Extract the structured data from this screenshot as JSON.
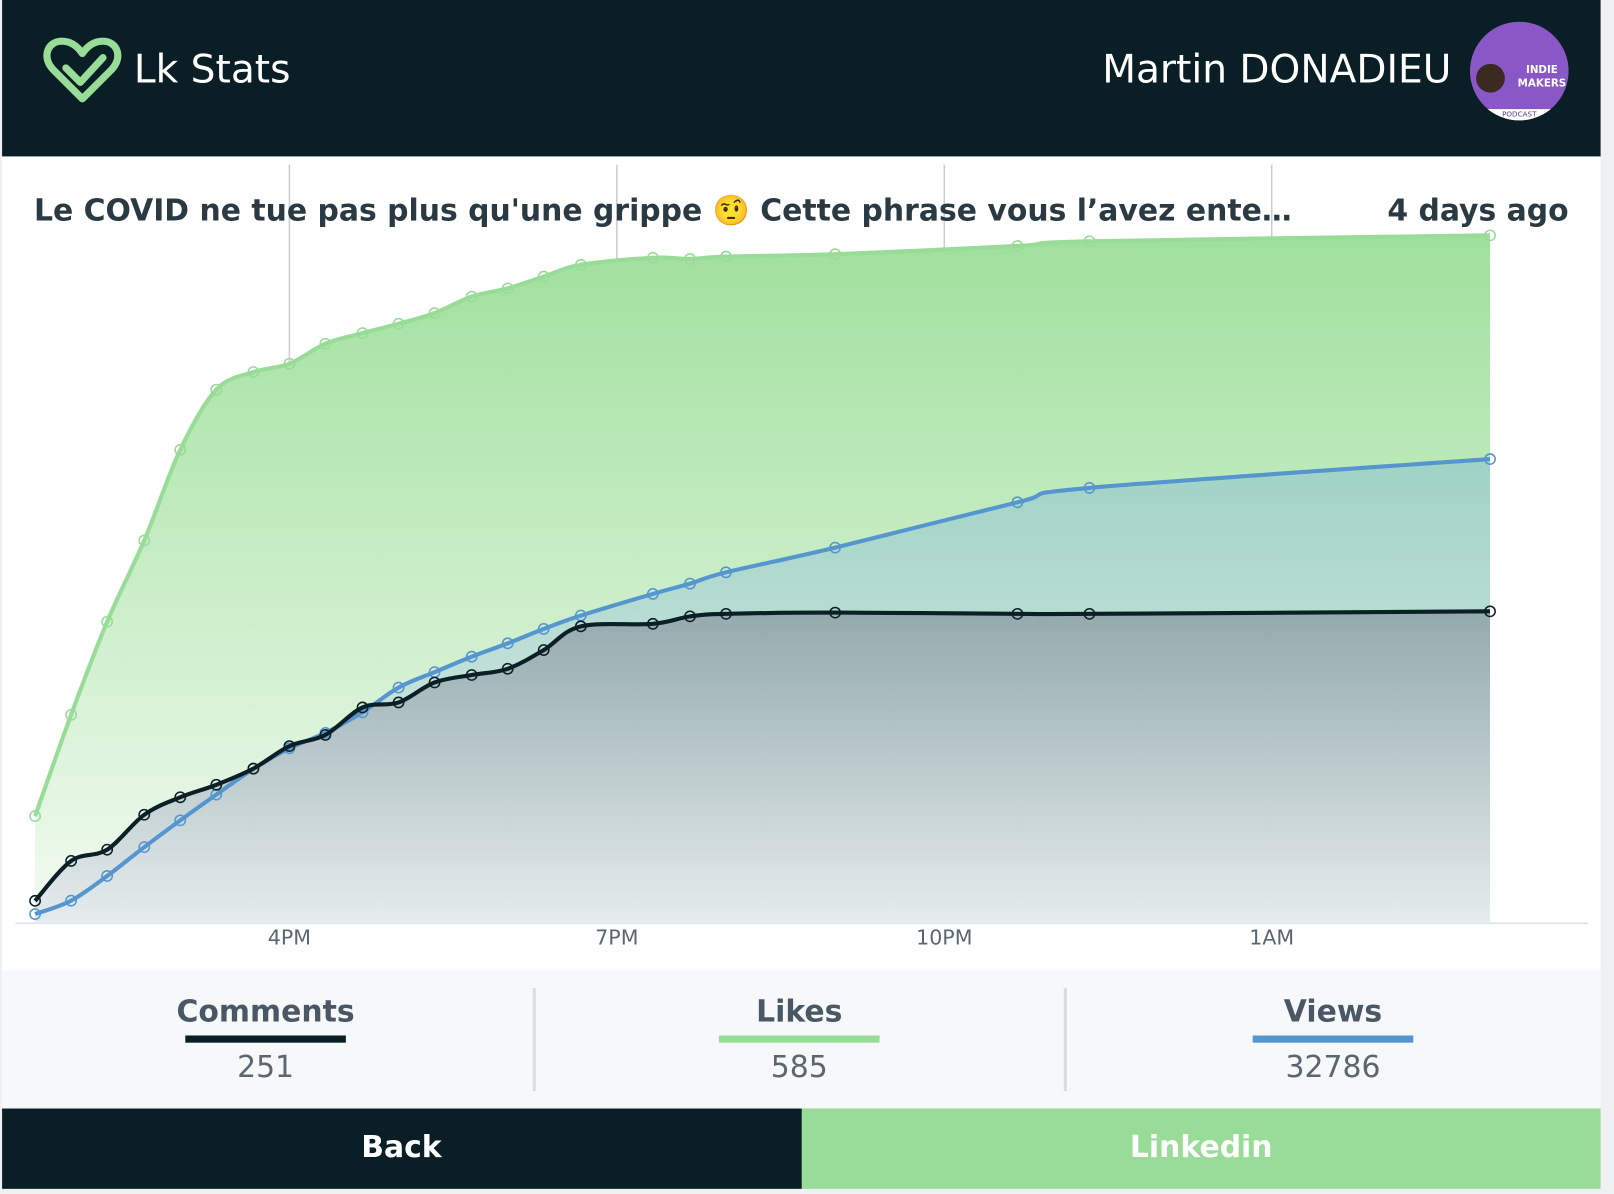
{
  "header": {
    "app_name": "Lk Stats",
    "user_name": "Martin DONADIEU",
    "avatar_text": [
      "INDIE",
      "MAKERS",
      "PODCAST"
    ]
  },
  "chart_data": {
    "type": "line",
    "title": "Le COVID ne tue pas plus qu'une grippe 🤨 Cette phrase vous l’avez ente…",
    "post_age": "4 days ago",
    "x": [
      13.67,
      14.0,
      14.33,
      14.67,
      15.0,
      15.33,
      15.67,
      16.0,
      16.33,
      16.67,
      17.0,
      17.33,
      17.67,
      18.0,
      18.33,
      18.67,
      19.33,
      19.67,
      20.0,
      21.0,
      22.67,
      23.33,
      27.0
    ],
    "xlim": [
      13.49,
      27.9
    ],
    "xticks": [
      {
        "value": 16,
        "label": "4PM"
      },
      {
        "value": 19,
        "label": "7PM"
      },
      {
        "value": 22,
        "label": "10PM"
      },
      {
        "value": 25,
        "label": "1AM"
      }
    ],
    "grid": true,
    "series": [
      {
        "name": "Comments",
        "total": 251,
        "color": "#0b1f26",
        "ylim": [
          0,
          608
        ],
        "values": [
          18,
          50,
          59,
          87,
          101,
          111,
          124,
          142,
          151,
          173,
          177,
          193,
          199,
          204,
          219,
          238,
          240,
          246,
          248,
          249,
          248,
          248,
          250
        ]
      },
      {
        "name": "Likes",
        "total": 585,
        "color": "#98dc97",
        "ylim": [
          0,
          644
        ],
        "values": [
          91,
          177,
          256,
          325,
          402,
          453,
          468,
          475,
          492,
          501,
          509,
          518,
          532,
          539,
          549,
          559,
          565,
          564,
          566,
          568,
          575,
          579,
          584
        ]
      },
      {
        "name": "Views",
        "total": 32786,
        "color": "#5596cf",
        "ylim": [
          0,
          52874
        ],
        "values": [
          646,
          1578,
          3300,
          5309,
          7174,
          8968,
          10761,
          12196,
          13272,
          14707,
          16429,
          17505,
          18581,
          19513,
          20518,
          21450,
          22957,
          23674,
          24463,
          26185,
          29342,
          30346,
          32355
        ]
      }
    ]
  },
  "buttons": [
    {
      "label": "Back"
    },
    {
      "label": "Linkedin"
    }
  ]
}
